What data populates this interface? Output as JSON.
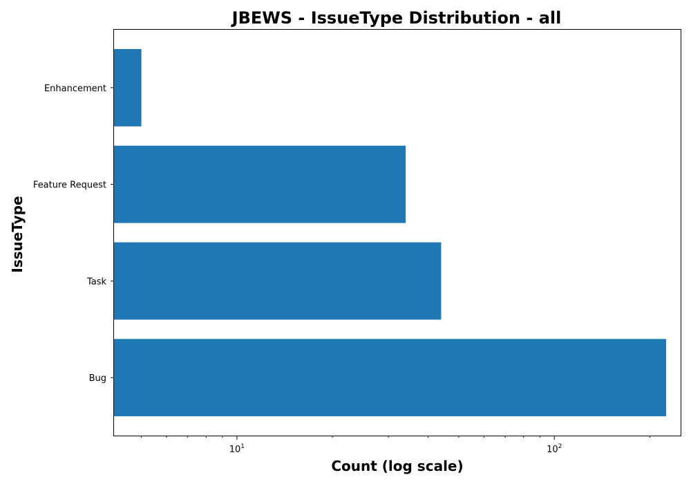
{
  "chart_data": {
    "type": "bar",
    "orientation": "horizontal",
    "title": "JBEWS - IssueType Distribution - all",
    "xlabel": "Count (log scale)",
    "ylabel": "IssueType",
    "xscale": "log",
    "xlim": [
      4.1,
      250
    ],
    "x_ticks": [
      {
        "value": 10,
        "base": "10",
        "exp": "1"
      },
      {
        "value": 100,
        "base": "10",
        "exp": "2"
      }
    ],
    "categories": [
      "Bug",
      "Task",
      "Feature Request",
      "Enhancement"
    ],
    "values": [
      225,
      44,
      34,
      5
    ],
    "color": "#1f77b4",
    "grid": false,
    "legend": "none"
  }
}
